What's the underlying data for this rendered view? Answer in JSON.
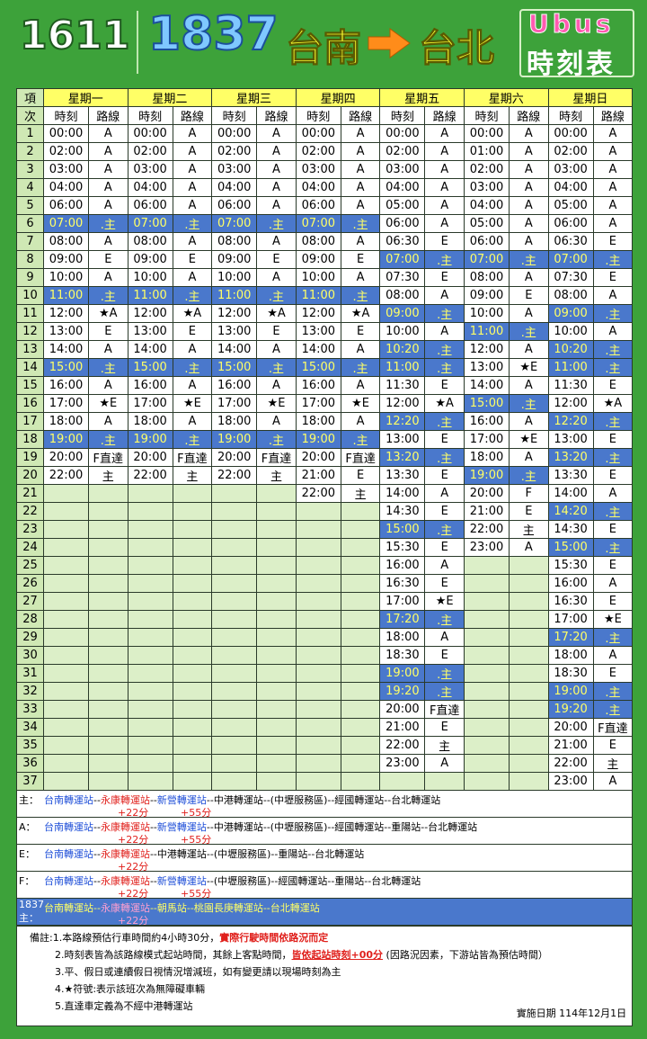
{
  "header": {
    "routes": [
      "1611",
      "1837"
    ],
    "from": "台南",
    "to": "台北",
    "brand": "Ubus",
    "subtitle": "時刻表"
  },
  "table": {
    "corner": [
      "項",
      "次"
    ],
    "sub_headers": [
      "時刻",
      "路線"
    ],
    "highlight_color": "#4a78cc",
    "row_numbers": [
      1,
      2,
      3,
      4,
      5,
      6,
      7,
      8,
      9,
      10,
      11,
      12,
      13,
      14,
      15,
      16,
      17,
      18,
      19,
      20,
      21,
      22,
      23,
      24,
      25,
      26,
      27,
      28,
      29,
      30,
      31,
      32,
      33,
      34,
      35,
      36,
      37
    ],
    "days": [
      {
        "name": "星期一",
        "rows": [
          [
            "00:00",
            "A"
          ],
          [
            "02:00",
            "A"
          ],
          [
            "03:00",
            "A"
          ],
          [
            "04:00",
            "A"
          ],
          [
            "06:00",
            "A"
          ],
          [
            "07:00",
            ".主",
            true
          ],
          [
            "08:00",
            "A"
          ],
          [
            "09:00",
            "E"
          ],
          [
            "10:00",
            "A"
          ],
          [
            "11:00",
            ".主",
            true
          ],
          [
            "12:00",
            "★A"
          ],
          [
            "13:00",
            "E"
          ],
          [
            "14:00",
            "A"
          ],
          [
            "15:00",
            ".主",
            true
          ],
          [
            "16:00",
            "A"
          ],
          [
            "17:00",
            "★E"
          ],
          [
            "18:00",
            "A"
          ],
          [
            "19:00",
            ".主",
            true
          ],
          [
            "20:00",
            "F直達"
          ],
          [
            "22:00",
            "主"
          ]
        ]
      },
      {
        "name": "星期二",
        "rows": [
          [
            "00:00",
            "A"
          ],
          [
            "02:00",
            "A"
          ],
          [
            "03:00",
            "A"
          ],
          [
            "04:00",
            "A"
          ],
          [
            "06:00",
            "A"
          ],
          [
            "07:00",
            ".主",
            true
          ],
          [
            "08:00",
            "A"
          ],
          [
            "09:00",
            "E"
          ],
          [
            "10:00",
            "A"
          ],
          [
            "11:00",
            ".主",
            true
          ],
          [
            "12:00",
            "★A"
          ],
          [
            "13:00",
            "E"
          ],
          [
            "14:00",
            "A"
          ],
          [
            "15:00",
            ".主",
            true
          ],
          [
            "16:00",
            "A"
          ],
          [
            "17:00",
            "★E"
          ],
          [
            "18:00",
            "A"
          ],
          [
            "19:00",
            ".主",
            true
          ],
          [
            "20:00",
            "F直達"
          ],
          [
            "22:00",
            "主"
          ]
        ]
      },
      {
        "name": "星期三",
        "rows": [
          [
            "00:00",
            "A"
          ],
          [
            "02:00",
            "A"
          ],
          [
            "03:00",
            "A"
          ],
          [
            "04:00",
            "A"
          ],
          [
            "06:00",
            "A"
          ],
          [
            "07:00",
            ".主",
            true
          ],
          [
            "08:00",
            "A"
          ],
          [
            "09:00",
            "E"
          ],
          [
            "10:00",
            "A"
          ],
          [
            "11:00",
            ".主",
            true
          ],
          [
            "12:00",
            "★A"
          ],
          [
            "13:00",
            "E"
          ],
          [
            "14:00",
            "A"
          ],
          [
            "15:00",
            ".主",
            true
          ],
          [
            "16:00",
            "A"
          ],
          [
            "17:00",
            "★E"
          ],
          [
            "18:00",
            "A"
          ],
          [
            "19:00",
            ".主",
            true
          ],
          [
            "20:00",
            "F直達"
          ],
          [
            "22:00",
            "主"
          ]
        ]
      },
      {
        "name": "星期四",
        "rows": [
          [
            "00:00",
            "A"
          ],
          [
            "02:00",
            "A"
          ],
          [
            "03:00",
            "A"
          ],
          [
            "04:00",
            "A"
          ],
          [
            "06:00",
            "A"
          ],
          [
            "07:00",
            ".主",
            true
          ],
          [
            "08:00",
            "A"
          ],
          [
            "09:00",
            "E"
          ],
          [
            "10:00",
            "A"
          ],
          [
            "11:00",
            ".主",
            true
          ],
          [
            "12:00",
            "★A"
          ],
          [
            "13:00",
            "E"
          ],
          [
            "14:00",
            "A"
          ],
          [
            "15:00",
            ".主",
            true
          ],
          [
            "16:00",
            "A"
          ],
          [
            "17:00",
            "★E"
          ],
          [
            "18:00",
            "A"
          ],
          [
            "19:00",
            ".主",
            true
          ],
          [
            "20:00",
            "F直達"
          ],
          [
            "21:00",
            "E"
          ],
          [
            "22:00",
            "主"
          ]
        ]
      },
      {
        "name": "星期五",
        "rows": [
          [
            "00:00",
            "A"
          ],
          [
            "02:00",
            "A"
          ],
          [
            "03:00",
            "A"
          ],
          [
            "04:00",
            "A"
          ],
          [
            "05:00",
            "A"
          ],
          [
            "06:00",
            "A"
          ],
          [
            "06:30",
            "E"
          ],
          [
            "07:00",
            ".主",
            true
          ],
          [
            "07:30",
            "E"
          ],
          [
            "08:00",
            "A"
          ],
          [
            "09:00",
            ".主",
            true
          ],
          [
            "10:00",
            "A"
          ],
          [
            "10:20",
            ".主",
            true
          ],
          [
            "11:00",
            ".主",
            true
          ],
          [
            "11:30",
            "E"
          ],
          [
            "12:00",
            "★A"
          ],
          [
            "12:20",
            ".主",
            true
          ],
          [
            "13:00",
            "E"
          ],
          [
            "13:20",
            ".主",
            true
          ],
          [
            "13:30",
            "E"
          ],
          [
            "14:00",
            "A"
          ],
          [
            "14:30",
            "E"
          ],
          [
            "15:00",
            ".主",
            true
          ],
          [
            "15:30",
            "E"
          ],
          [
            "16:00",
            "A"
          ],
          [
            "16:30",
            "E"
          ],
          [
            "17:00",
            "★E"
          ],
          [
            "17:20",
            ".主",
            true
          ],
          [
            "18:00",
            "A"
          ],
          [
            "18:30",
            "E"
          ],
          [
            "19:00",
            ".主",
            true
          ],
          [
            "19:20",
            ".主",
            true
          ],
          [
            "20:00",
            "F直達"
          ],
          [
            "21:00",
            "E"
          ],
          [
            "22:00",
            "主"
          ],
          [
            "23:00",
            "A"
          ]
        ]
      },
      {
        "name": "星期六",
        "rows": [
          [
            "00:00",
            "A"
          ],
          [
            "01:00",
            "A"
          ],
          [
            "02:00",
            "A"
          ],
          [
            "03:00",
            "A"
          ],
          [
            "04:00",
            "A"
          ],
          [
            "05:00",
            "A"
          ],
          [
            "06:00",
            "A"
          ],
          [
            "07:00",
            ".主",
            true
          ],
          [
            "08:00",
            "A"
          ],
          [
            "09:00",
            "E"
          ],
          [
            "10:00",
            "A"
          ],
          [
            "11:00",
            ".主",
            true
          ],
          [
            "12:00",
            "A"
          ],
          [
            "13:00",
            "★E"
          ],
          [
            "14:00",
            "A"
          ],
          [
            "15:00",
            ".主",
            true
          ],
          [
            "16:00",
            "A"
          ],
          [
            "17:00",
            "★E"
          ],
          [
            "18:00",
            "A"
          ],
          [
            "19:00",
            ".主",
            true
          ],
          [
            "20:00",
            "F"
          ],
          [
            "21:00",
            "E"
          ],
          [
            "22:00",
            "主"
          ],
          [
            "23:00",
            "A"
          ]
        ]
      },
      {
        "name": "星期日",
        "rows": [
          [
            "00:00",
            "A"
          ],
          [
            "02:00",
            "A"
          ],
          [
            "03:00",
            "A"
          ],
          [
            "04:00",
            "A"
          ],
          [
            "05:00",
            "A"
          ],
          [
            "06:00",
            "A"
          ],
          [
            "06:30",
            "E"
          ],
          [
            "07:00",
            ".主",
            true
          ],
          [
            "07:30",
            "E"
          ],
          [
            "08:00",
            "A"
          ],
          [
            "09:00",
            ".主",
            true
          ],
          [
            "10:00",
            "A"
          ],
          [
            "10:20",
            ".主",
            true
          ],
          [
            "11:00",
            ".主",
            true
          ],
          [
            "11:30",
            "E"
          ],
          [
            "12:00",
            "★A"
          ],
          [
            "12:20",
            ".主",
            true
          ],
          [
            "13:00",
            "E"
          ],
          [
            "13:20",
            ".主",
            true
          ],
          [
            "13:30",
            "E"
          ],
          [
            "14:00",
            "A"
          ],
          [
            "14:20",
            ".主",
            true
          ],
          [
            "14:30",
            "E"
          ],
          [
            "15:00",
            ".主",
            true
          ],
          [
            "15:30",
            "E"
          ],
          [
            "16:00",
            "A"
          ],
          [
            "16:30",
            "E"
          ],
          [
            "17:00",
            "★E"
          ],
          [
            "17:20",
            ".主",
            true
          ],
          [
            "18:00",
            "A"
          ],
          [
            "18:30",
            "E"
          ],
          [
            "19:00",
            ".主",
            true
          ],
          [
            "19:20",
            ".主",
            true
          ],
          [
            "20:00",
            "F直達"
          ],
          [
            "21:00",
            "E"
          ],
          [
            "22:00",
            "主"
          ],
          [
            "23:00",
            "A"
          ]
        ]
      }
    ]
  },
  "legend": [
    {
      "label": [
        "主："
      ],
      "route": [
        {
          "t": "台南轉運站",
          "c": "#1f4fd8"
        },
        {
          "t": "--"
        },
        {
          "t": "永康轉運站",
          "c": "#e0201c"
        },
        {
          "t": "--"
        },
        {
          "t": "新營轉運站",
          "c": "#1f4fd8"
        },
        {
          "t": "--中港轉運站--(中壢服務區)--經國轉運站--台北轉運站"
        }
      ],
      "offsets": [
        "+22分",
        "+55分"
      ]
    },
    {
      "label": [
        "A："
      ],
      "route": [
        {
          "t": "台南轉運站",
          "c": "#1f4fd8"
        },
        {
          "t": "--"
        },
        {
          "t": "永康轉運站",
          "c": "#e0201c"
        },
        {
          "t": "--"
        },
        {
          "t": "新營轉運站",
          "c": "#1f4fd8"
        },
        {
          "t": "--中港轉運站--(中壢服務區)--經國轉運站--重陽站--台北轉運站"
        }
      ],
      "offsets": [
        "+22分",
        "+55分"
      ]
    },
    {
      "label": [
        "E："
      ],
      "route": [
        {
          "t": "台南轉運站",
          "c": "#1f4fd8"
        },
        {
          "t": "--"
        },
        {
          "t": "永康轉運站",
          "c": "#e0201c"
        },
        {
          "t": "--中港轉運站--(中壢服務區)--重陽站--台北轉運站"
        }
      ],
      "offsets": [
        "+22分"
      ]
    },
    {
      "label": [
        "F："
      ],
      "route": [
        {
          "t": "台南轉運站",
          "c": "#1f4fd8"
        },
        {
          "t": "--"
        },
        {
          "t": "永康轉運站",
          "c": "#e0201c"
        },
        {
          "t": "--"
        },
        {
          "t": "新營轉運站",
          "c": "#1f4fd8"
        },
        {
          "t": "--(中壢服務區)--經國轉運站--重陽站--台北轉運站"
        }
      ],
      "offsets": [
        "+22分",
        "+55分"
      ]
    },
    {
      "label": [
        "1837",
        "主："
      ],
      "highlight": true,
      "route": [
        {
          "t": "台南轉運站",
          "c": "#ffff66"
        },
        {
          "t": "--",
          "c": "#ffff66"
        },
        {
          "t": "永康轉運站",
          "c": "#ff9fd0"
        },
        {
          "t": "--朝馬站--桃園長庚轉運站--台北轉運站",
          "c": "#ffff66"
        }
      ],
      "offsets": [
        "+22分"
      ]
    }
  ],
  "notes": [
    [
      {
        "t": "備註:1.本路線預估行車時間約4小時30分，"
      },
      {
        "t": "實際行駛時間依路況而定",
        "c": "#e0201c"
      }
    ],
    [
      {
        "t": "2.時刻表皆為該路線模式起站時間，其餘上客點時間，"
      },
      {
        "t": "皆依起站時刻+00分",
        "c": "#e0201c",
        "u": true
      },
      {
        "t": " (因路況因素，下游站皆為預估時間）"
      }
    ],
    [
      {
        "t": "3.平、假日或連續假日視情況增減班，如有變更請以現場時刻為主"
      }
    ],
    [
      {
        "t": "4.★符號:表示該班次為無障礙車輛"
      }
    ],
    [
      {
        "t": "5.直達車定義為不經中港轉運站"
      }
    ]
  ],
  "effective_date": "實施日期 114年12月1日"
}
